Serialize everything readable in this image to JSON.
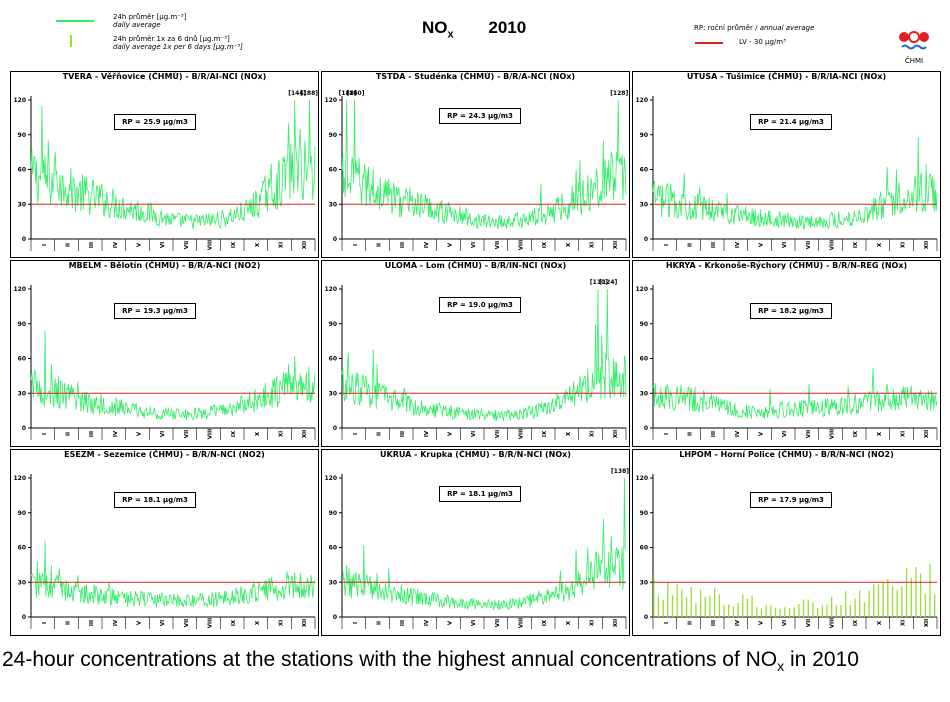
{
  "header": {
    "legend_daily_cz": "24h průměr [µg.m⁻³]",
    "legend_daily_en": "daily average",
    "legend_6days_cz": "24h průměr 1x za 6 dnů [µg.m⁻³]",
    "legend_6days_en": "daily average 1x per 6 days [µg.m⁻³]",
    "title_pollutant": "NO",
    "title_pollutant_sub": "x",
    "title_year": "2010",
    "legend_rp_cz": "RP: roční průměr / ",
    "legend_rp_en": "annual average",
    "legend_lv": "LV  - 30 µg/m³",
    "logo_text": "ČHMI"
  },
  "colors": {
    "series": "#33ee66",
    "series_6days": "#99dd33",
    "limit": "#dd2222",
    "logo_red": "#e02020",
    "logo_blue": "#2266cc"
  },
  "caption": {
    "text_before": "24-hour concentrations at the stations with the highest annual concentrations of NO",
    "text_sub": "x",
    "text_after": " in 2010"
  },
  "chart_data": [
    {
      "type": "line",
      "title": "TVERA - Věřňovice (ČHMÚ) - B/R/AI-NCI (NOx)",
      "rp_label": "RP = 25.9 µg/m3",
      "mean": 25.9,
      "limit": 30,
      "ylim": [
        0,
        120
      ],
      "yticks": [
        0,
        30,
        60,
        90,
        120
      ],
      "xticks": [
        "I",
        "II",
        "III",
        "IV",
        "V",
        "VI",
        "VII",
        "VIII",
        "IX",
        "X",
        "XI",
        "XII"
      ],
      "peaks": [
        {
          "label": "[144]",
          "day": 340
        },
        {
          "label": "[188]",
          "day": 357
        }
      ],
      "profile": [
        55,
        48,
        40,
        34,
        27,
        22,
        16,
        15,
        17,
        23,
        38,
        58
      ],
      "spikes": [
        [
          5,
          70
        ],
        [
          14,
          115
        ],
        [
          22,
          85
        ],
        [
          31,
          75
        ],
        [
          37,
          55
        ],
        [
          44,
          45
        ],
        [
          78,
          40
        ],
        [
          92,
          34
        ],
        [
          300,
          55
        ],
        [
          308,
          65
        ],
        [
          325,
          70
        ],
        [
          330,
          100
        ],
        [
          338,
          120
        ],
        [
          345,
          95
        ],
        [
          351,
          85
        ],
        [
          357,
          120
        ]
      ],
      "series": "daily"
    },
    {
      "type": "line",
      "title": "TSTDA - Studénka (ČHMÚ) - B/R/A-NCI (NOx)",
      "rp_label": "RP = 24.3 µg/m3",
      "mean": 24.3,
      "limit": 30,
      "ylim": [
        0,
        120
      ],
      "yticks": [
        0,
        30,
        60,
        90,
        120
      ],
      "xticks": [
        "I",
        "II",
        "III",
        "IV",
        "V",
        "VI",
        "VII",
        "VIII",
        "IX",
        "X",
        "XI",
        "XII"
      ],
      "peaks": [
        {
          "label": "[188]",
          "day": 6
        },
        {
          "label": "[160]",
          "day": 16
        },
        {
          "label": "[128]",
          "day": 354
        }
      ],
      "profile": [
        52,
        45,
        36,
        30,
        25,
        20,
        15,
        15,
        18,
        25,
        36,
        52
      ],
      "spikes": [
        [
          6,
          120
        ],
        [
          16,
          120
        ],
        [
          22,
          70
        ],
        [
          30,
          55
        ],
        [
          40,
          60
        ],
        [
          58,
          50
        ],
        [
          70,
          45
        ],
        [
          90,
          38
        ],
        [
          255,
          48
        ],
        [
          300,
          60
        ],
        [
          305,
          68
        ],
        [
          320,
          50
        ],
        [
          335,
          85
        ],
        [
          345,
          75
        ],
        [
          354,
          120
        ]
      ],
      "series": "daily"
    },
    {
      "type": "line",
      "title": "UTUSA - Tušimice (ČHMÚ) - B/R/IA-NCI (NOx)",
      "rp_label": "RP = 21.4 µg/m3",
      "mean": 21.4,
      "limit": 30,
      "ylim": [
        0,
        120
      ],
      "yticks": [
        0,
        30,
        60,
        90,
        120
      ],
      "xticks": [
        "I",
        "II",
        "III",
        "IV",
        "V",
        "VI",
        "VII",
        "VIII",
        "IX",
        "X",
        "XI",
        "XII"
      ],
      "peaks": [],
      "profile": [
        35,
        32,
        27,
        24,
        20,
        17,
        15,
        15,
        17,
        22,
        33,
        40
      ],
      "spikes": [
        [
          10,
          45
        ],
        [
          25,
          40
        ],
        [
          40,
          57
        ],
        [
          60,
          45
        ],
        [
          95,
          40
        ],
        [
          300,
          62
        ],
        [
          312,
          60
        ],
        [
          335,
          48
        ],
        [
          340,
          88
        ],
        [
          350,
          65
        ],
        [
          360,
          52
        ]
      ],
      "series": "daily"
    },
    {
      "type": "line",
      "title": "MBELM - Bělotín (ČHMÚ) - B/R/A-NCI (NO2)",
      "rp_label": "RP = 19.3 µg/m3",
      "mean": 19.3,
      "limit": 30,
      "ylim": [
        0,
        120
      ],
      "yticks": [
        0,
        30,
        60,
        90,
        120
      ],
      "xticks": [
        "I",
        "II",
        "III",
        "IV",
        "V",
        "VI",
        "VII",
        "VIII",
        "IX",
        "X",
        "XI",
        "XII"
      ],
      "peaks": [],
      "profile": [
        35,
        30,
        24,
        20,
        17,
        13,
        12,
        12,
        15,
        20,
        28,
        38
      ],
      "spikes": [
        [
          5,
          50
        ],
        [
          18,
          84
        ],
        [
          26,
          55
        ],
        [
          35,
          45
        ],
        [
          60,
          40
        ],
        [
          90,
          30
        ],
        [
          330,
          55
        ],
        [
          338,
          62
        ],
        [
          350,
          35
        ]
      ],
      "series": "daily"
    },
    {
      "type": "line",
      "title": "ULOMA - Lom (ČHMÚ) - B/R/IN-NCI (NOx)",
      "rp_label": "RP = 19.0 µg/m3",
      "mean": 19.0,
      "limit": 30,
      "ylim": [
        0,
        120
      ],
      "yticks": [
        0,
        30,
        60,
        90,
        120
      ],
      "xticks": [
        "I",
        "II",
        "III",
        "IV",
        "V",
        "VI",
        "VII",
        "VIII",
        "IX",
        "X",
        "XI",
        "XII"
      ],
      "peaks": [
        {
          "label": "[110]",
          "day": 328
        },
        {
          "label": "[124]",
          "day": 340
        }
      ],
      "profile": [
        38,
        32,
        25,
        20,
        16,
        13,
        11,
        11,
        14,
        20,
        30,
        45
      ],
      "spikes": [
        [
          8,
          65
        ],
        [
          20,
          48
        ],
        [
          40,
          68
        ],
        [
          45,
          55
        ],
        [
          80,
          35
        ],
        [
          305,
          45
        ],
        [
          315,
          52
        ],
        [
          325,
          90
        ],
        [
          328,
          120
        ],
        [
          333,
          80
        ],
        [
          340,
          120
        ],
        [
          348,
          60
        ],
        [
          356,
          48
        ]
      ],
      "series": "daily"
    },
    {
      "type": "line",
      "title": "HKRYA - Krkonoše-Rýchory (ČHMÚ) - B/R/N-REG (NOx)",
      "rp_label": "RP = 18.2 µg/m3",
      "mean": 18.2,
      "limit": 30,
      "ylim": [
        0,
        120
      ],
      "yticks": [
        0,
        30,
        60,
        90,
        120
      ],
      "xticks": [
        "I",
        "II",
        "III",
        "IV",
        "V",
        "VI",
        "VII",
        "VIII",
        "IX",
        "X",
        "XI",
        "XII"
      ],
      "peaks": [],
      "profile": [
        28,
        27,
        24,
        18,
        14,
        15,
        17,
        17,
        20,
        22,
        25,
        26
      ],
      "spikes": [
        [
          10,
          35
        ],
        [
          30,
          33
        ],
        [
          45,
          35
        ],
        [
          150,
          34
        ],
        [
          200,
          38
        ],
        [
          250,
          36
        ],
        [
          282,
          52
        ],
        [
          300,
          38
        ],
        [
          330,
          33
        ]
      ],
      "series": "daily"
    },
    {
      "type": "line",
      "title": "ESEZM - Sezemice (ČHMÚ) - B/R/N-NCI (NO2)",
      "rp_label": "RP = 18.1 µg/m3",
      "mean": 18.1,
      "limit": 30,
      "ylim": [
        0,
        120
      ],
      "yticks": [
        0,
        30,
        60,
        90,
        120
      ],
      "xticks": [
        "I",
        "II",
        "III",
        "IV",
        "V",
        "VI",
        "VII",
        "VIII",
        "IX",
        "X",
        "XI",
        "XII"
      ],
      "peaks": [],
      "profile": [
        28,
        26,
        22,
        18,
        16,
        15,
        14,
        14,
        16,
        19,
        24,
        28
      ],
      "spikes": [
        [
          8,
          48
        ],
        [
          18,
          66
        ],
        [
          26,
          45
        ],
        [
          36,
          42
        ],
        [
          60,
          36
        ],
        [
          100,
          30
        ],
        [
          300,
          32
        ],
        [
          330,
          36
        ],
        [
          350,
          30
        ]
      ],
      "series": "daily"
    },
    {
      "type": "line",
      "title": "UKRUA - Krupka (ČHMÚ) - B/R/N-NCI (NOx)",
      "rp_label": "RP = 18.1 µg/m3",
      "mean": 18.1,
      "limit": 30,
      "ylim": [
        0,
        120
      ],
      "yticks": [
        0,
        30,
        60,
        90,
        120
      ],
      "xticks": [
        "I",
        "II",
        "III",
        "IV",
        "V",
        "VI",
        "VII",
        "VIII",
        "IX",
        "X",
        "XI",
        "XII"
      ],
      "peaks": [
        {
          "label": "[138]",
          "day": 362
        }
      ],
      "profile": [
        30,
        27,
        22,
        18,
        14,
        12,
        11,
        11,
        14,
        20,
        30,
        42
      ],
      "spikes": [
        [
          6,
          45
        ],
        [
          28,
          62
        ],
        [
          45,
          38
        ],
        [
          60,
          42
        ],
        [
          280,
          40
        ],
        [
          300,
          58
        ],
        [
          315,
          60
        ],
        [
          325,
          55
        ],
        [
          335,
          85
        ],
        [
          345,
          70
        ],
        [
          352,
          60
        ],
        [
          362,
          120
        ]
      ],
      "series": "daily"
    },
    {
      "type": "bar",
      "title": "LHPOM - Horní Police (ČHMÚ) - B/R/N-NCI (NO2)",
      "rp_label": "RP = 17.9 µg/m3",
      "mean": 17.9,
      "limit": 30,
      "ylim": [
        0,
        120
      ],
      "yticks": [
        0,
        30,
        60,
        90,
        120
      ],
      "xticks": [
        "I",
        "II",
        "III",
        "IV",
        "V",
        "VI",
        "VII",
        "VIII",
        "IX",
        "X",
        "XI",
        "XII"
      ],
      "peaks": [],
      "profile": [
        28,
        24,
        20,
        17,
        14,
        12,
        11,
        12,
        15,
        19,
        26,
        32
      ],
      "spikes": [
        [
          12,
          37
        ],
        [
          36,
          30
        ],
        [
          350,
          44
        ],
        [
          362,
          40
        ]
      ],
      "series": "six_day"
    }
  ]
}
